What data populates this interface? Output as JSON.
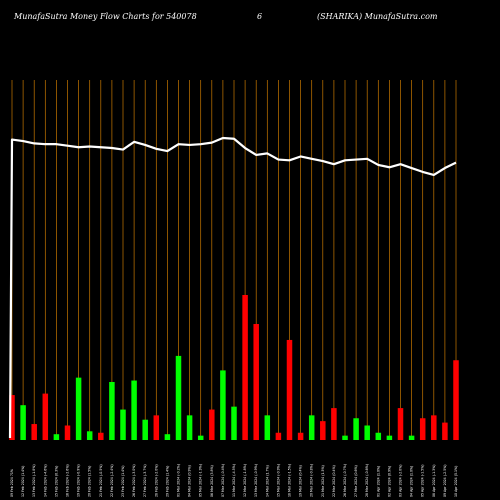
{
  "header": {
    "left": "MunafaSutra  Money Flow  Charts for 540078",
    "middle": "6",
    "right": "(SHARIKA) MunafaSutra.com"
  },
  "colors": {
    "background": "#000000",
    "grid": "#c87800",
    "up": "#00ff00",
    "down": "#ff0000",
    "line": "#ffffff",
    "text": "#ffffff"
  },
  "chart_data": {
    "type": "bar",
    "grid": true,
    "categories": [
      "09 Feb 2024 71%",
      "12 Feb 2024 (1.4%)",
      "13 Feb 2024 (-1.8%)",
      "14 Feb 2024 (-4.6%)",
      "15 Feb 2024 (0.3%)",
      "16 Feb 2024 (-2.6%)",
      "19 Feb 2024 (-0.9%)",
      "20 Feb 2024 (1.5%)",
      "21 Feb 2024 (-0.5%)",
      "22 Feb 2024 (-2.4%)",
      "23 Feb 2024 (1.4%)",
      "26 Feb 2024 (-3.0%)",
      "27 Feb 2024 (-3.7%)",
      "28 Feb 2024 (-2.0%)",
      "29 Feb 2024 (1.4%)",
      "01 Mar 2024 (-0.2%)",
      "04 Mar 2024 (0.9%)",
      "05 Mar 2024 (-1.9%)",
      "06 Mar 2024 (3.8%)",
      "07 Mar 2024 (-0.4%)",
      "11 Mar 2024 (-4.5%)",
      "12 Mar 2024 (-1.8%)",
      "13 Mar 2024 (-0.9%)",
      "14 Mar 2024 (1.7%)",
      "15 Mar 2024 (-0.9%)",
      "18 Mar 2024 (-1.5%)",
      "19 Mar 2024 (0.4%)",
      "20 Mar 2024 (-0.8%)",
      "21 Mar 2024 (1.5%)",
      "22 Mar 2024 (0.4%)",
      "26 Mar 2024 (-0.7%)",
      "27 Mar 2024 (0.6%)",
      "28 Mar 2024 (-0.6%)",
      "01 Apr 2024 (1.0%)",
      "02 Apr 2024 (0.9%)",
      "03 Apr 2024 (-2.0%)",
      "04 Apr 2024 (1.0%)",
      "05 Apr 2024 (-1.5%)",
      "08 Apr 2024 (-1.3%)",
      "09 Apr 2024 (-2.5%)",
      "10 Apr 2024 (5.1%)"
    ],
    "volumes": [
      0.31,
      0.24,
      0.11,
      0.32,
      0.04,
      0.1,
      0.43,
      0.06,
      0.05,
      0.4,
      0.21,
      0.41,
      0.14,
      0.17,
      0.04,
      0.58,
      0.17,
      0.03,
      0.21,
      0.48,
      0.23,
      1.0,
      0.8,
      0.17,
      0.05,
      0.69,
      0.05,
      0.17,
      0.13,
      0.22,
      0.03,
      0.15,
      0.1,
      0.05,
      0.03,
      0.22,
      0.03,
      0.15,
      0.17,
      0.12,
      0.55
    ],
    "direction": [
      "down",
      "up",
      "down",
      "down",
      "up",
      "down",
      "up",
      "up",
      "down",
      "up",
      "up",
      "up",
      "up",
      "down",
      "up",
      "up",
      "up",
      "up",
      "down",
      "up",
      "up",
      "down",
      "down",
      "up",
      "down",
      "down",
      "down",
      "up",
      "down",
      "down",
      "up",
      "up",
      "up",
      "up",
      "up",
      "down",
      "up",
      "down",
      "down",
      "down",
      "down"
    ],
    "price": [
      0.98,
      0.96,
      0.93,
      0.92,
      0.92,
      0.9,
      0.88,
      0.89,
      0.88,
      0.87,
      0.85,
      0.95,
      0.91,
      0.86,
      0.83,
      0.92,
      0.91,
      0.92,
      0.94,
      1.0,
      0.99,
      0.87,
      0.78,
      0.8,
      0.72,
      0.71,
      0.76,
      0.73,
      0.7,
      0.66,
      0.71,
      0.72,
      0.73,
      0.65,
      0.62,
      0.66,
      0.61,
      0.56,
      0.52,
      0.61,
      0.68
    ],
    "price_start": 0.0
  }
}
